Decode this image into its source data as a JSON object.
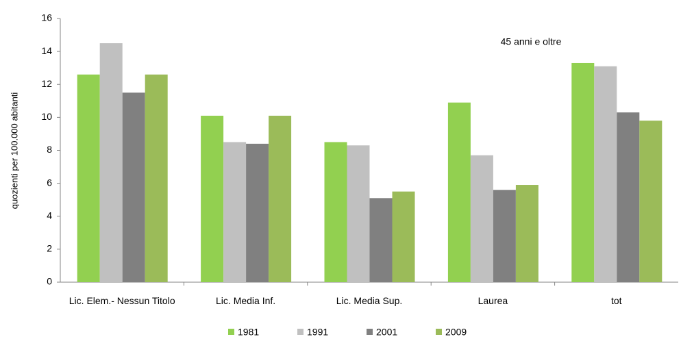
{
  "chart_data": {
    "type": "bar",
    "annotation": "45 anni e oltre",
    "y_label": "quozienti per 100.000 abitanti",
    "categories": [
      "Lic. Elem.- Nessun Titolo",
      "Lic. Media Inf.",
      "Lic. Media Sup.",
      "Laurea",
      "tot"
    ],
    "series": [
      {
        "name": "1981",
        "color": "#92d050",
        "values": [
          12.6,
          10.1,
          8.5,
          10.9,
          13.3
        ]
      },
      {
        "name": "1991",
        "color": "#c0c0c0",
        "values": [
          14.5,
          8.5,
          8.3,
          7.7,
          13.1
        ]
      },
      {
        "name": "2001",
        "color": "#808080",
        "values": [
          11.5,
          8.4,
          5.1,
          5.6,
          10.3
        ]
      },
      {
        "name": "2009",
        "color": "#9bbb59",
        "values": [
          12.6,
          10.1,
          5.5,
          5.9,
          9.8
        ]
      }
    ],
    "ylim": [
      0,
      16
    ],
    "yticks": [
      0,
      2,
      4,
      6,
      8,
      10,
      12,
      14,
      16
    ],
    "grid": false
  }
}
